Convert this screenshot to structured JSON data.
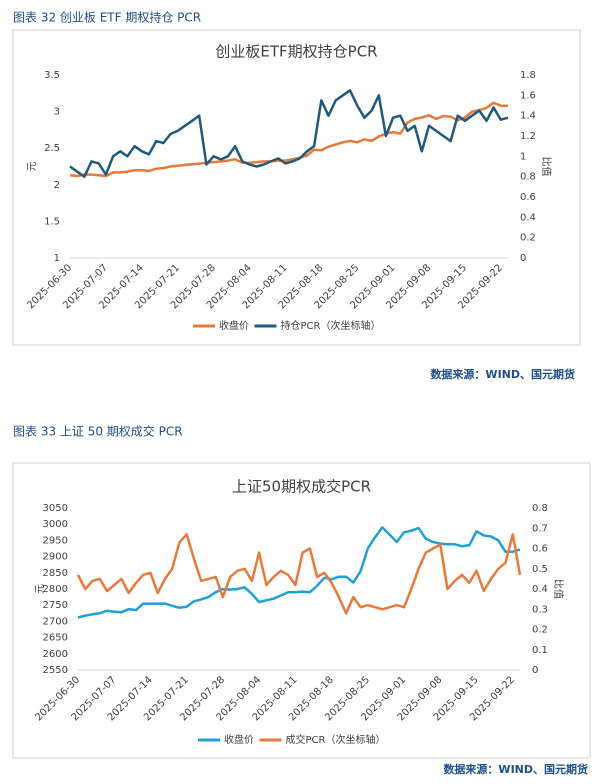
{
  "chart_data": [
    {
      "type": "line",
      "caption": "图表 32 创业板 ETF 期权持仓 PCR",
      "title": "创业板ETF期权持仓PCR",
      "source": "数据来源：WIND、国元期货",
      "ylabel": "元",
      "y2label": "比值",
      "categories": [
        "2025-06-30",
        null,
        null,
        null,
        null,
        "2025-07-07",
        null,
        null,
        null,
        null,
        "2025-07-14",
        null,
        null,
        null,
        null,
        "2025-07-21",
        null,
        null,
        null,
        null,
        "2025-07-28",
        null,
        null,
        null,
        null,
        "2025-08-04",
        null,
        null,
        null,
        null,
        "2025-08-11",
        null,
        null,
        null,
        null,
        "2025-08-18",
        null,
        null,
        null,
        null,
        "2025-08-25",
        null,
        null,
        null,
        null,
        "2025-09-01",
        null,
        null,
        null,
        null,
        "2025-09-08",
        null,
        null,
        null,
        null,
        "2025-09-15",
        null,
        null,
        null,
        null,
        "2025-09-22",
        null
      ],
      "ylim": [
        1,
        3.5
      ],
      "yticks": [
        1,
        1.5,
        2,
        2.5,
        3,
        3.5
      ],
      "y2lim": [
        0,
        1.8
      ],
      "y2ticks": [
        0,
        0.2,
        0.4,
        0.6,
        0.8,
        1,
        1.2,
        1.4,
        1.6,
        1.8
      ],
      "legend": "bottom",
      "series": [
        {
          "name": "收盘价",
          "color": "#e8793a",
          "values": [
            2.13,
            2.12,
            2.14,
            2.14,
            2.13,
            2.12,
            2.17,
            2.17,
            2.18,
            2.2,
            2.2,
            2.19,
            2.22,
            2.23,
            2.25,
            2.26,
            2.27,
            2.28,
            2.29,
            2.3,
            2.31,
            2.32,
            2.33,
            2.35,
            2.3,
            2.3,
            2.31,
            2.32,
            2.32,
            2.33,
            2.33,
            2.35,
            2.37,
            2.4,
            2.48,
            2.47,
            2.52,
            2.55,
            2.58,
            2.6,
            2.58,
            2.62,
            2.6,
            2.66,
            2.7,
            2.72,
            2.7,
            2.85,
            2.9,
            2.92,
            2.95,
            2.9,
            2.94,
            2.93,
            2.88,
            2.92,
            3.0,
            3.02,
            3.05,
            3.12,
            3.08,
            3.08
          ]
        },
        {
          "name": "持仓PCR（次坐标轴）",
          "color": "#1f5a7a",
          "axis": "y2",
          "values": [
            0.9,
            0.85,
            0.8,
            0.95,
            0.93,
            0.82,
            1.0,
            1.05,
            1.0,
            1.1,
            1.05,
            1.02,
            1.15,
            1.13,
            1.22,
            1.25,
            1.3,
            1.35,
            1.4,
            0.92,
            1.0,
            0.97,
            1.0,
            1.1,
            0.95,
            0.92,
            0.9,
            0.92,
            0.95,
            0.98,
            0.93,
            0.95,
            0.98,
            1.05,
            1.1,
            1.55,
            1.4,
            1.55,
            1.6,
            1.65,
            1.5,
            1.38,
            1.45,
            1.6,
            1.2,
            1.38,
            1.4,
            1.25,
            1.3,
            1.05,
            1.3,
            1.25,
            1.2,
            1.15,
            1.4,
            1.35,
            1.4,
            1.45,
            1.35,
            1.48,
            1.36,
            1.38
          ]
        }
      ]
    },
    {
      "type": "line",
      "caption": "图表 33 上证 50 期权成交 PCR",
      "title": "上证50期权成交PCR",
      "source": "数据来源：WIND、国元期货",
      "ylabel": "元",
      "y2label": "比值",
      "categories": [
        "2025-06-30",
        null,
        null,
        null,
        null,
        "2025-07-07",
        null,
        null,
        null,
        null,
        "2025-07-14",
        null,
        null,
        null,
        null,
        "2025-07-21",
        null,
        null,
        null,
        null,
        "2025-07-28",
        null,
        null,
        null,
        null,
        "2025-08-04",
        null,
        null,
        null,
        null,
        "2025-08-11",
        null,
        null,
        null,
        null,
        "2025-08-18",
        null,
        null,
        null,
        null,
        "2025-08-25",
        null,
        null,
        null,
        null,
        "2025-09-01",
        null,
        null,
        null,
        null,
        "2025-09-08",
        null,
        null,
        null,
        null,
        "2025-09-15",
        null,
        null,
        null,
        null,
        "2025-09-22",
        null
      ],
      "ylim": [
        2550,
        3050
      ],
      "yticks": [
        2550,
        2600,
        2650,
        2700,
        2750,
        2800,
        2850,
        2900,
        2950,
        3000,
        3050
      ],
      "y2lim": [
        0,
        0.8
      ],
      "y2ticks": [
        0,
        0.1,
        0.2,
        0.3,
        0.4,
        0.5,
        0.6,
        0.7,
        0.8
      ],
      "legend": "bottom",
      "series": [
        {
          "name": "收盘价",
          "color": "#1fa0d8",
          "values": [
            2712,
            2718,
            2722,
            2725,
            2733,
            2730,
            2728,
            2738,
            2735,
            2755,
            2755,
            2755,
            2755,
            2748,
            2742,
            2745,
            2762,
            2768,
            2775,
            2790,
            2800,
            2798,
            2800,
            2805,
            2785,
            2760,
            2765,
            2770,
            2780,
            2790,
            2790,
            2792,
            2790,
            2810,
            2835,
            2830,
            2838,
            2838,
            2820,
            2855,
            2925,
            2960,
            2990,
            2968,
            2945,
            2975,
            2980,
            2988,
            2955,
            2945,
            2940,
            2938,
            2938,
            2932,
            2935,
            2978,
            2965,
            2962,
            2950,
            2915,
            2915,
            2922
          ]
        },
        {
          "name": "成交PCR（次坐标轴）",
          "color": "#e8793a",
          "axis": "y2",
          "values": [
            0.47,
            0.4,
            0.44,
            0.45,
            0.39,
            0.42,
            0.45,
            0.38,
            0.43,
            0.47,
            0.48,
            0.38,
            0.45,
            0.5,
            0.63,
            0.67,
            0.55,
            0.44,
            0.45,
            0.46,
            0.36,
            0.46,
            0.49,
            0.5,
            0.44,
            0.58,
            0.42,
            0.46,
            0.49,
            0.47,
            0.42,
            0.58,
            0.6,
            0.46,
            0.48,
            0.43,
            0.36,
            0.28,
            0.36,
            0.31,
            0.32,
            0.31,
            0.3,
            0.31,
            0.32,
            0.31,
            0.4,
            0.5,
            0.58,
            0.6,
            0.62,
            0.4,
            0.44,
            0.47,
            0.43,
            0.49,
            0.39,
            0.45,
            0.5,
            0.53,
            0.67,
            0.47
          ]
        }
      ]
    }
  ]
}
